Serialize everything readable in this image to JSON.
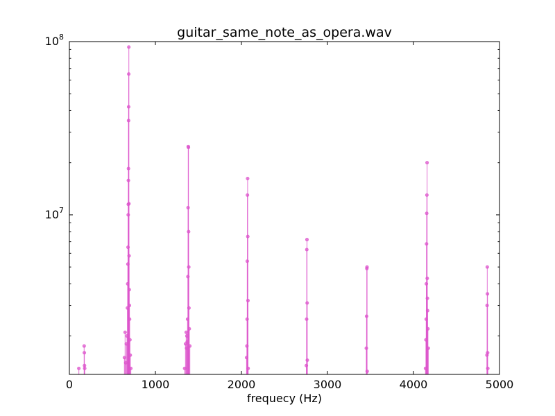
{
  "chart_data": {
    "type": "line",
    "title": "guitar_same_note_as_opera.wav",
    "xlabel": "frequecy (Hz)",
    "ylabel": "",
    "xlim": [
      0,
      5000
    ],
    "ylim": [
      1200000,
      100000000
    ],
    "yscale": "log",
    "grid": false,
    "legend": "none",
    "x_ticks": [
      {
        "value": 0,
        "label": "0"
      },
      {
        "value": 1000,
        "label": "1000"
      },
      {
        "value": 2000,
        "label": "2000"
      },
      {
        "value": 3000,
        "label": "3000"
      },
      {
        "value": 4000,
        "label": "4000"
      },
      {
        "value": 5000,
        "label": "5000"
      }
    ],
    "y_ticks": [
      {
        "value": 10000000,
        "base": "10",
        "exp": "7"
      },
      {
        "value": 100000000,
        "base": "10",
        "exp": "8"
      }
    ],
    "color": "#dd55cc",
    "series": [
      {
        "values": [
          {
            "x": 110,
            "y": 1300000
          },
          {
            "x": 172,
            "y": 1750000
          },
          {
            "x": 174,
            "y": 1600000
          },
          {
            "x": 176,
            "y": 1350000
          },
          {
            "x": 178,
            "y": 1300000
          },
          {
            "x": 640,
            "y": 1500000
          },
          {
            "x": 648,
            "y": 2100000
          },
          {
            "x": 655,
            "y": 1400000
          },
          {
            "x": 662,
            "y": 1800000
          },
          {
            "x": 670,
            "y": 2000000
          },
          {
            "x": 675,
            "y": 2900000
          },
          {
            "x": 678,
            "y": 4000000
          },
          {
            "x": 680,
            "y": 5200000
          },
          {
            "x": 682,
            "y": 6500000
          },
          {
            "x": 684,
            "y": 10000000
          },
          {
            "x": 685,
            "y": 11500000
          },
          {
            "x": 686,
            "y": 15800000
          },
          {
            "x": 687,
            "y": 18500000
          },
          {
            "x": 688,
            "y": 35000000
          },
          {
            "x": 689,
            "y": 42000000
          },
          {
            "x": 690,
            "y": 65000000
          },
          {
            "x": 691,
            "y": 93000000
          },
          {
            "x": 692,
            "y": 11600000
          },
          {
            "x": 694,
            "y": 5800000
          },
          {
            "x": 696,
            "y": 3700000
          },
          {
            "x": 698,
            "y": 3000000
          },
          {
            "x": 700,
            "y": 2500000
          },
          {
            "x": 704,
            "y": 1900000
          },
          {
            "x": 708,
            "y": 1550000
          },
          {
            "x": 714,
            "y": 1300000
          },
          {
            "x": 1340,
            "y": 1300000
          },
          {
            "x": 1350,
            "y": 1800000
          },
          {
            "x": 1358,
            "y": 2100000
          },
          {
            "x": 1362,
            "y": 1700000
          },
          {
            "x": 1366,
            "y": 2000000
          },
          {
            "x": 1370,
            "y": 1850000
          },
          {
            "x": 1374,
            "y": 2500000
          },
          {
            "x": 1378,
            "y": 4400000
          },
          {
            "x": 1380,
            "y": 11000000
          },
          {
            "x": 1382,
            "y": 24800000
          },
          {
            "x": 1384,
            "y": 24500000
          },
          {
            "x": 1386,
            "y": 8000000
          },
          {
            "x": 1388,
            "y": 5000000
          },
          {
            "x": 1390,
            "y": 2900000
          },
          {
            "x": 1394,
            "y": 2200000
          },
          {
            "x": 1400,
            "y": 1750000
          },
          {
            "x": 2060,
            "y": 1500000
          },
          {
            "x": 2064,
            "y": 1750000
          },
          {
            "x": 2066,
            "y": 2500000
          },
          {
            "x": 2068,
            "y": 5400000
          },
          {
            "x": 2070,
            "y": 13000000
          },
          {
            "x": 2072,
            "y": 16200000
          },
          {
            "x": 2074,
            "y": 7500000
          },
          {
            "x": 2076,
            "y": 3200000
          },
          {
            "x": 2078,
            "y": 1300000
          },
          {
            "x": 2755,
            "y": 1350000
          },
          {
            "x": 2758,
            "y": 2500000
          },
          {
            "x": 2760,
            "y": 6300000
          },
          {
            "x": 2762,
            "y": 7200000
          },
          {
            "x": 2764,
            "y": 3100000
          },
          {
            "x": 2766,
            "y": 1450000
          },
          {
            "x": 3452,
            "y": 1700000
          },
          {
            "x": 3455,
            "y": 2600000
          },
          {
            "x": 3458,
            "y": 4900000
          },
          {
            "x": 3460,
            "y": 5000000
          },
          {
            "x": 3462,
            "y": 1250000
          },
          {
            "x": 4140,
            "y": 1300000
          },
          {
            "x": 4145,
            "y": 1900000
          },
          {
            "x": 4148,
            "y": 2500000
          },
          {
            "x": 4150,
            "y": 4000000
          },
          {
            "x": 4152,
            "y": 6800000
          },
          {
            "x": 4154,
            "y": 10200000
          },
          {
            "x": 4156,
            "y": 13000000
          },
          {
            "x": 4158,
            "y": 20000000
          },
          {
            "x": 4160,
            "y": 4300000
          },
          {
            "x": 4162,
            "y": 3300000
          },
          {
            "x": 4164,
            "y": 2800000
          },
          {
            "x": 4168,
            "y": 2200000
          },
          {
            "x": 4172,
            "y": 1700000
          },
          {
            "x": 4854,
            "y": 1550000
          },
          {
            "x": 4856,
            "y": 3000000
          },
          {
            "x": 4858,
            "y": 5000000
          },
          {
            "x": 4860,
            "y": 3500000
          },
          {
            "x": 4862,
            "y": 1600000
          },
          {
            "x": 4864,
            "y": 1300000
          }
        ]
      }
    ]
  }
}
